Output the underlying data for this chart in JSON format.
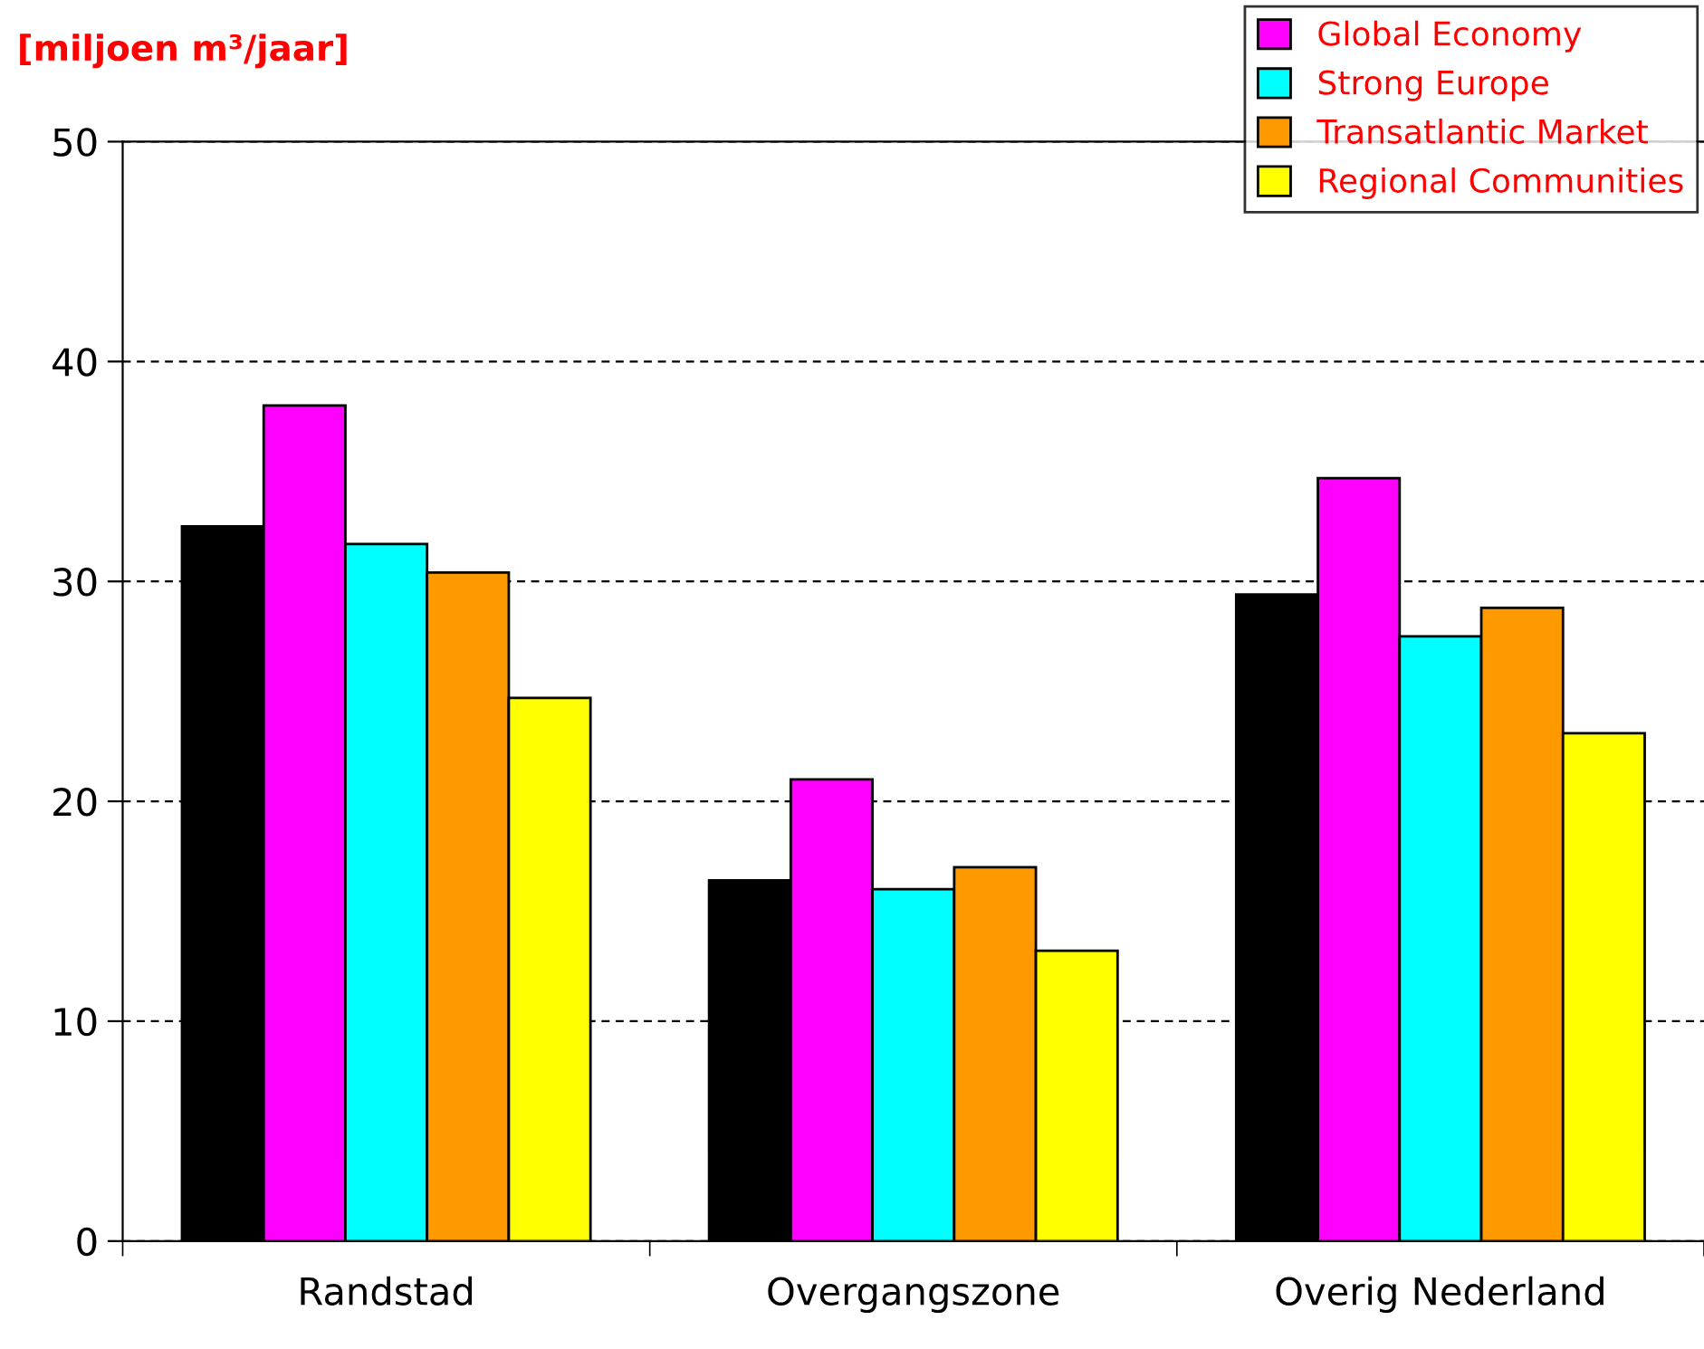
{
  "chart_data": {
    "type": "bar",
    "ylabel": "[miljoen m³/jaar]",
    "categories": [
      "Randstad",
      "Overgangszone",
      "Overig Nederland"
    ],
    "series": [
      {
        "color": "#000000",
        "values": [
          32.5,
          16.4,
          29.4
        ]
      },
      {
        "name": "Global Economy",
        "color": "#ff00ff",
        "values": [
          38.0,
          21.0,
          34.7
        ]
      },
      {
        "name": "Strong Europe",
        "color": "#00ffff",
        "values": [
          31.7,
          16.0,
          27.5
        ]
      },
      {
        "name": "Transatlantic Market",
        "color": "#ff9900",
        "values": [
          30.4,
          17.0,
          28.8
        ]
      },
      {
        "name": "Regional Communities",
        "color": "#ffff00",
        "values": [
          24.7,
          13.2,
          23.1
        ]
      }
    ],
    "ylim": [
      0,
      50
    ],
    "yticks": [
      0,
      10,
      20,
      30,
      40,
      50
    ],
    "grid": "y",
    "legend": "top right"
  }
}
